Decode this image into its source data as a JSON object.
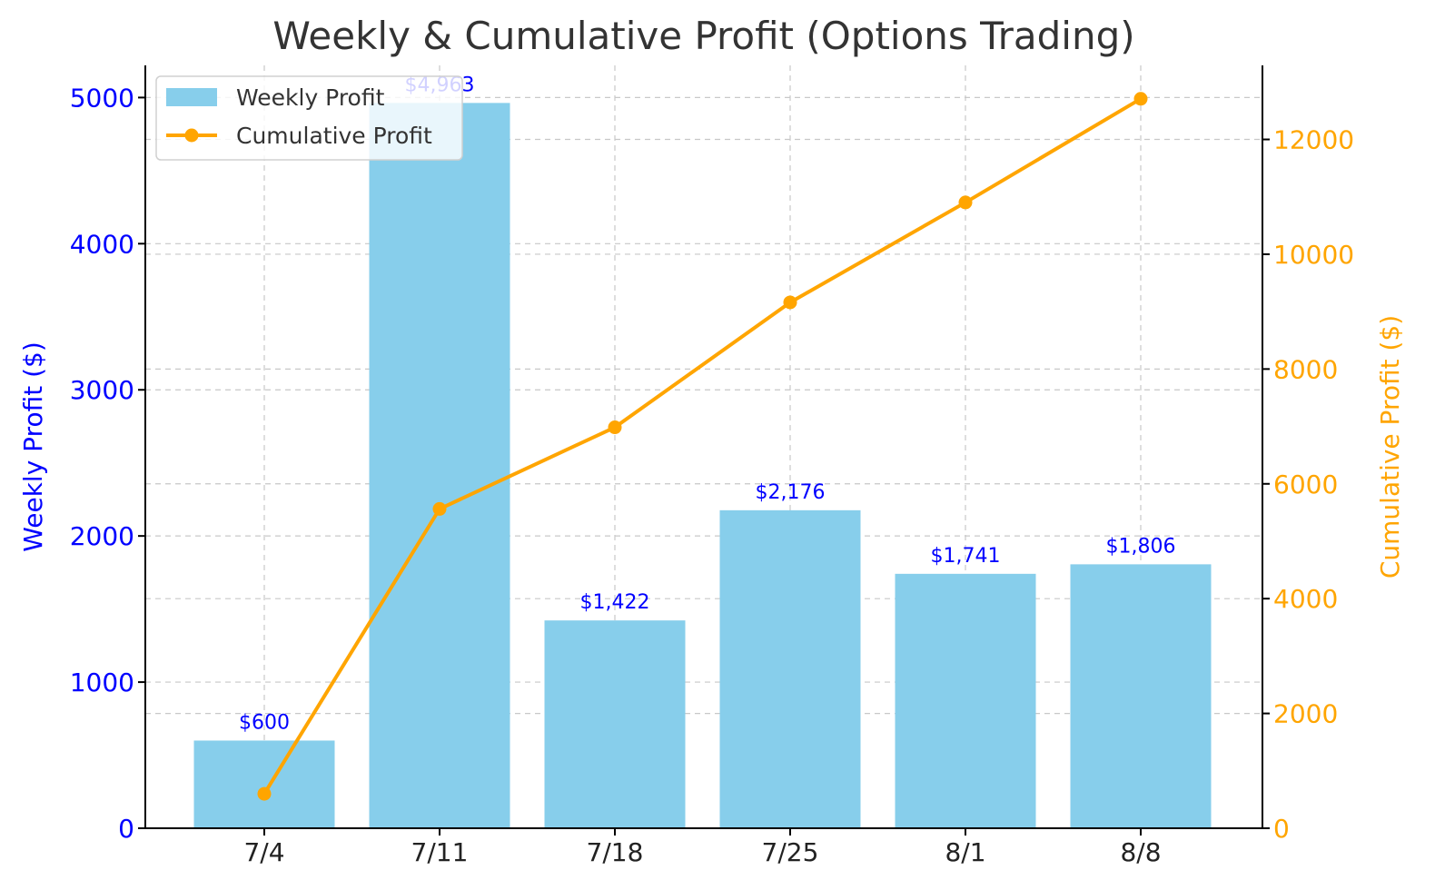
{
  "chart_data": {
    "type": "bar",
    "title": "Weekly & Cumulative Profit (Options Trading)",
    "categories": [
      "7/4",
      "7/11",
      "7/18",
      "7/25",
      "8/1",
      "8/8"
    ],
    "series": [
      {
        "name": "Weekly Profit",
        "type": "bar",
        "axis": "left",
        "values": [
          600,
          4963,
          1422,
          2176,
          1741,
          1806
        ],
        "data_labels": [
          "$600",
          "$4,963",
          "$1,422",
          "$2,176",
          "$1,741",
          "$1,806"
        ],
        "color": "#87ceeb"
      },
      {
        "name": "Cumulative Profit",
        "type": "line",
        "axis": "right",
        "values": [
          600,
          5563,
          6985,
          9161,
          10902,
          12708
        ],
        "color": "#ffa500"
      }
    ],
    "ylabel_left": "Weekly Profit ($)",
    "ylabel_right": "Cumulative Profit ($)",
    "ylim_left": [
      0,
      5220
    ],
    "ylim_right": [
      0,
      13290
    ],
    "yticks_left": [
      "0",
      "1000",
      "2000",
      "3000",
      "4000",
      "5000"
    ],
    "yticks_right": [
      "0",
      "2000",
      "4000",
      "6000",
      "8000",
      "10000",
      "12000"
    ],
    "left_axis_color": "#0000ff",
    "right_axis_color": "#ffa500",
    "grid": true,
    "legend_position": "top-left"
  }
}
